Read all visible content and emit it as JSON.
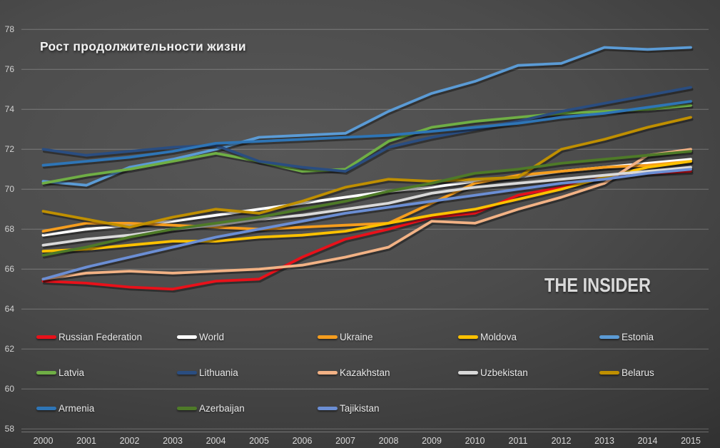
{
  "title": "Рост продолжительности жизни",
  "watermark": "THE INSIDER",
  "colors": {
    "background_center": "#575757",
    "background_edge": "#262626",
    "gridline": "rgba(255,255,255,0.25)",
    "axis_line": "rgba(255,255,255,0.3)",
    "text": "#e9e9e9"
  },
  "chart_data": {
    "type": "line",
    "title": "Рост продолжительности жизни",
    "xlabel": "",
    "ylabel": "",
    "ylim": [
      58,
      78
    ],
    "y_ticks": [
      78,
      76,
      74,
      72,
      70,
      68,
      66,
      64,
      62,
      60,
      58
    ],
    "grid": true,
    "legend_position": "bottom-overlay",
    "categories": [
      "2000",
      "2001",
      "2002",
      "2003",
      "2004",
      "2005",
      "2006",
      "2007",
      "2008",
      "2009",
      "2010",
      "2011",
      "2012",
      "2013",
      "2014",
      "2015"
    ],
    "series": [
      {
        "name": "Russian Federation",
        "color": "#e8111a",
        "values": [
          65.4,
          65.3,
          65.1,
          65.0,
          65.4,
          65.5,
          66.6,
          67.5,
          68.0,
          68.6,
          68.8,
          69.7,
          70.1,
          70.6,
          70.8,
          70.9
        ]
      },
      {
        "name": "World",
        "color": "#ffffff",
        "values": [
          67.7,
          68.0,
          68.2,
          68.4,
          68.7,
          69.0,
          69.3,
          69.6,
          69.9,
          70.1,
          70.4,
          70.6,
          70.9,
          71.1,
          71.3,
          71.5
        ]
      },
      {
        "name": "Ukraine",
        "color": "#f59d1e",
        "values": [
          67.9,
          68.3,
          68.3,
          68.2,
          68.1,
          68.0,
          68.1,
          68.2,
          68.3,
          69.3,
          70.3,
          70.7,
          70.9,
          71.1,
          71.2,
          71.4
        ]
      },
      {
        "name": "Moldova",
        "color": "#fdc100",
        "values": [
          66.9,
          67.0,
          67.2,
          67.4,
          67.4,
          67.6,
          67.7,
          67.9,
          68.3,
          68.7,
          69.0,
          69.5,
          70.0,
          70.6,
          71.1,
          71.4
        ]
      },
      {
        "name": "Estonia",
        "color": "#5b9bd5",
        "values": [
          70.4,
          70.2,
          71.1,
          71.5,
          72.0,
          72.6,
          72.7,
          72.8,
          73.9,
          74.8,
          75.4,
          76.2,
          76.3,
          77.1,
          77.0,
          77.1
        ]
      },
      {
        "name": "Latvia",
        "color": "#6fae45",
        "values": [
          70.3,
          70.7,
          71.0,
          71.4,
          71.8,
          71.4,
          70.9,
          71.0,
          72.4,
          73.1,
          73.4,
          73.6,
          73.8,
          73.9,
          74.0,
          74.2
        ]
      },
      {
        "name": "Lithuania",
        "color": "#2a4d80",
        "values": [
          72.0,
          71.7,
          71.9,
          72.1,
          72.2,
          71.4,
          71.1,
          70.9,
          72.1,
          72.6,
          73.0,
          73.4,
          73.9,
          74.3,
          74.7,
          75.1
        ]
      },
      {
        "name": "Kazakhstan",
        "color": "#f2b285",
        "values": [
          65.5,
          65.8,
          65.9,
          65.8,
          65.9,
          66.0,
          66.2,
          66.6,
          67.1,
          68.4,
          68.3,
          69.0,
          69.6,
          70.3,
          71.7,
          72.0
        ]
      },
      {
        "name": "Uzbekistan",
        "color": "#d9d9d9",
        "values": [
          67.2,
          67.5,
          67.7,
          68.0,
          68.2,
          68.5,
          68.7,
          69.0,
          69.3,
          69.8,
          70.1,
          70.3,
          70.5,
          70.7,
          70.9,
          71.1
        ]
      },
      {
        "name": "Belarus",
        "color": "#bf8f00",
        "values": [
          68.9,
          68.5,
          68.1,
          68.6,
          69.0,
          68.8,
          69.4,
          70.1,
          70.5,
          70.4,
          70.5,
          70.6,
          72.0,
          72.5,
          73.1,
          73.6
        ]
      },
      {
        "name": "Armenia",
        "color": "#2e75b6",
        "values": [
          71.2,
          71.4,
          71.6,
          71.9,
          72.3,
          72.4,
          72.5,
          72.6,
          72.7,
          72.9,
          73.1,
          73.3,
          73.6,
          73.8,
          74.1,
          74.4
        ]
      },
      {
        "name": "Azerbaijan",
        "color": "#4e7a28",
        "values": [
          66.7,
          67.1,
          67.6,
          68.0,
          68.3,
          68.6,
          69.0,
          69.4,
          69.9,
          70.3,
          70.8,
          71.0,
          71.3,
          71.5,
          71.7,
          71.9
        ]
      },
      {
        "name": "Tajikistan",
        "color": "#6b8ed4",
        "values": [
          65.5,
          66.1,
          66.6,
          67.1,
          67.6,
          68.0,
          68.4,
          68.8,
          69.1,
          69.4,
          69.7,
          70.0,
          70.3,
          70.5,
          70.8,
          71.0
        ]
      }
    ]
  }
}
